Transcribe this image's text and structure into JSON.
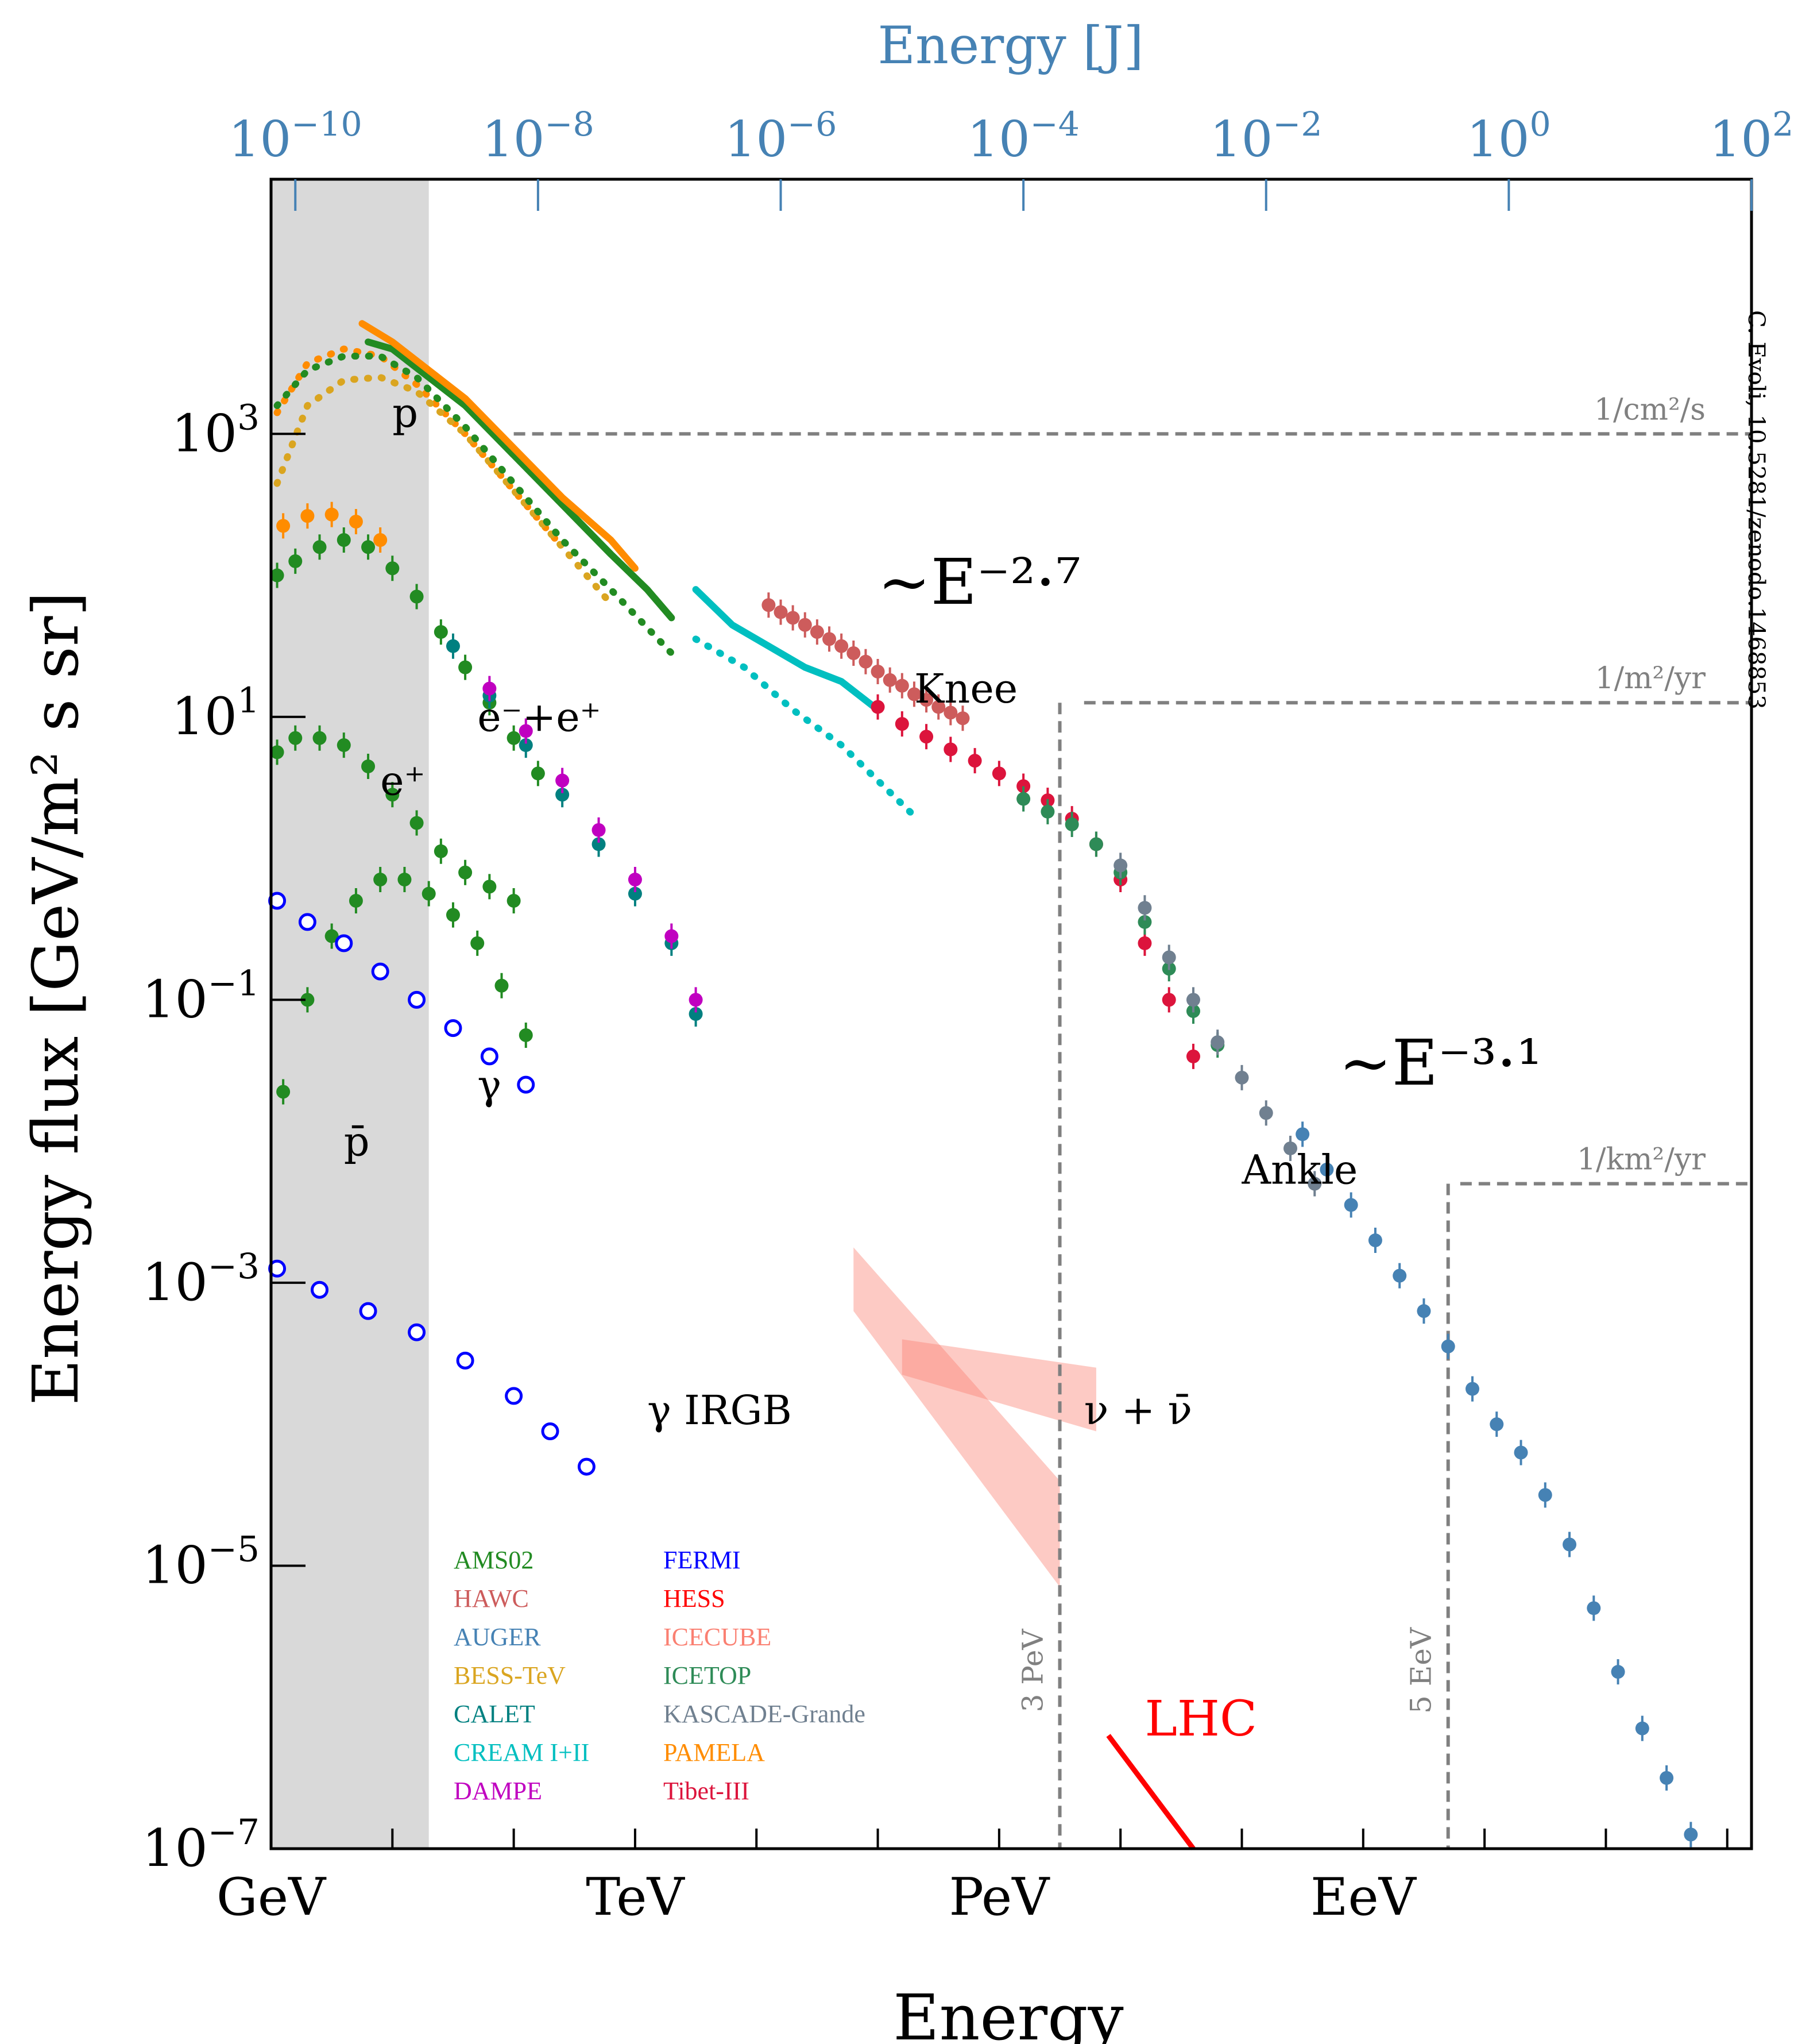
{
  "chart_data": {
    "type": "scatter",
    "title": "",
    "xlabel": "Energy",
    "ylabel": "Energy flux [GeV/m² s sr]",
    "top_xlabel": "Energy [J]",
    "x_scale": "log10 GeV",
    "xlim": [
      0,
      12.2
    ],
    "ylim": [
      -7,
      4.8
    ],
    "x_ticks": [
      {
        "value": 0,
        "label": "GeV"
      },
      {
        "value": 3,
        "label": "TeV"
      },
      {
        "value": 6,
        "label": "PeV"
      },
      {
        "value": 9,
        "label": "EeV"
      }
    ],
    "y_ticks": [
      {
        "value": 3,
        "base": "10",
        "exp": "3"
      },
      {
        "value": 1,
        "base": "10",
        "exp": "1"
      },
      {
        "value": -1,
        "base": "10",
        "exp": "−1"
      },
      {
        "value": -3,
        "base": "10",
        "exp": "−3"
      },
      {
        "value": -5,
        "base": "10",
        "exp": "−5"
      },
      {
        "value": -7,
        "base": "10",
        "exp": "−7"
      }
    ],
    "top_ticks": [
      {
        "value": 0.2,
        "base": "10",
        "exp": "−10"
      },
      {
        "value": 2.2,
        "base": "10",
        "exp": "−8"
      },
      {
        "value": 4.2,
        "base": "10",
        "exp": "−6"
      },
      {
        "value": 6.2,
        "base": "10",
        "exp": "−4"
      },
      {
        "value": 8.2,
        "base": "10",
        "exp": "−2"
      },
      {
        "value": 10.2,
        "base": "10",
        "exp": "0"
      },
      {
        "value": 12.2,
        "base": "10",
        "exp": "2"
      }
    ],
    "shaded_region": [
      0,
      1.3
    ],
    "reference_lines": [
      {
        "y": 3.0,
        "x_start": 2.0,
        "label": "1/cm²/s"
      },
      {
        "y": 1.1,
        "x_start": 6.7,
        "label": "1/m²/yr"
      },
      {
        "y": -2.3,
        "x_start": 9.8,
        "label": "1/km²/yr"
      }
    ],
    "vertical_markers": [
      {
        "x": 6.5,
        "y_top": 1.1,
        "label": "3 PeV"
      },
      {
        "x": 9.7,
        "y_top": -2.3,
        "label": "5 EeV"
      }
    ],
    "annotations": [
      {
        "text": "~E⁻²·⁷",
        "x": 5.0,
        "y": 1.8
      },
      {
        "text": "~E⁻³·¹",
        "x": 8.8,
        "y": -1.6
      },
      {
        "text": "Knee",
        "x": 5.3,
        "y": 1.1
      },
      {
        "text": "Ankle",
        "x": 8.0,
        "y": -2.3
      },
      {
        "text": "ν + ν̄",
        "x": 6.7,
        "y": -4.0
      },
      {
        "text": "γ IRGB",
        "x": 3.1,
        "y": -4.0
      },
      {
        "text": "LHC",
        "x": 7.2,
        "y": -6.2
      },
      {
        "text": "p",
        "x": 1.0,
        "y": 3.05
      },
      {
        "text": "e⁻+e⁺",
        "x": 1.7,
        "y": 0.9
      },
      {
        "text": "e⁺",
        "x": 0.9,
        "y": 0.45
      },
      {
        "text": "γ",
        "x": 1.7,
        "y": -1.7
      },
      {
        "text": "p̄",
        "x": 0.6,
        "y": -2.1
      }
    ],
    "credit": "C. Evoli, 10.5281/zenodo.1468853",
    "legend": [
      {
        "name": "AMS02",
        "color": "#228b22"
      },
      {
        "name": "HAWC",
        "color": "#cd5c5c"
      },
      {
        "name": "AUGER",
        "color": "#4682b4"
      },
      {
        "name": "BESS-TeV",
        "color": "#daa520"
      },
      {
        "name": "CALET",
        "color": "#008080"
      },
      {
        "name": "CREAM I+II",
        "color": "#00bfc0"
      },
      {
        "name": "DAMPE",
        "color": "#c000c0"
      },
      {
        "name": "FERMI",
        "color": "#0000ff"
      },
      {
        "name": "HESS",
        "color": "#ff0000"
      },
      {
        "name": "ICECUBE",
        "color": "#fa8072"
      },
      {
        "name": "ICETOP",
        "color": "#2e8b57"
      },
      {
        "name": "KASCADE-Grande",
        "color": "#708090"
      },
      {
        "name": "PAMELA",
        "color": "#ff8c00"
      },
      {
        "name": "Tibet-III",
        "color": "#dc143c"
      }
    ],
    "series": [
      {
        "name": "p AMS02 (solid)",
        "color": "#228b22",
        "style": "line",
        "x": [
          0.8,
          1.0,
          1.3,
          1.6,
          2.0,
          2.4,
          2.8,
          3.1,
          3.3
        ],
        "y": [
          3.65,
          3.6,
          3.4,
          3.2,
          2.85,
          2.5,
          2.15,
          1.9,
          1.7
        ]
      },
      {
        "name": "p PAMELA (solid)",
        "color": "#ff8c00",
        "style": "line",
        "x": [
          0.75,
          1.0,
          1.3,
          1.6,
          2.0,
          2.4,
          2.8,
          3.0
        ],
        "y": [
          3.78,
          3.65,
          3.45,
          3.25,
          2.9,
          2.55,
          2.25,
          2.05
        ]
      },
      {
        "name": "p PAMELA (dotted)",
        "color": "#ff8c00",
        "style": "dotted",
        "x": [
          0.05,
          0.3,
          0.6,
          0.9,
          1.2,
          1.6,
          2.0,
          2.4
        ],
        "y": [
          3.15,
          3.5,
          3.6,
          3.55,
          3.35,
          3.0,
          2.6,
          2.2
        ]
      },
      {
        "name": "p BESS (dotted)",
        "color": "#daa520",
        "style": "dotted",
        "x": [
          0.05,
          0.3,
          0.6,
          0.9,
          1.2,
          1.6,
          2.0,
          2.4,
          2.8
        ],
        "y": [
          2.65,
          3.2,
          3.38,
          3.4,
          3.3,
          3.0,
          2.6,
          2.2,
          1.8
        ]
      },
      {
        "name": "p AMS02 (dotted)",
        "color": "#228b22",
        "style": "dotted",
        "x": [
          0.05,
          0.3,
          0.6,
          0.9,
          1.2,
          1.6,
          2.0,
          2.4,
          2.8,
          3.3
        ],
        "y": [
          3.2,
          3.45,
          3.55,
          3.55,
          3.4,
          3.05,
          2.65,
          2.25,
          1.9,
          1.45
        ]
      },
      {
        "name": "CREAM (solid)",
        "color": "#00bfc0",
        "style": "line",
        "x": [
          3.5,
          3.8,
          4.1,
          4.4,
          4.7,
          5.0
        ],
        "y": [
          1.9,
          1.65,
          1.5,
          1.35,
          1.25,
          1.05
        ]
      },
      {
        "name": "CREAM (dotted)",
        "color": "#00bfc0",
        "style": "dotted",
        "x": [
          3.5,
          3.9,
          4.3,
          4.7,
          5.0,
          5.3
        ],
        "y": [
          1.55,
          1.35,
          1.05,
          0.8,
          0.55,
          0.3
        ]
      },
      {
        "name": "HAWC",
        "color": "#cd5c5c",
        "style": "points",
        "x": [
          4.1,
          4.2,
          4.3,
          4.4,
          4.5,
          4.6,
          4.7,
          4.8,
          4.9,
          5.0,
          5.1,
          5.2,
          5.3,
          5.4,
          5.5,
          5.6,
          5.7
        ],
        "y": [
          1.79,
          1.74,
          1.7,
          1.65,
          1.6,
          1.55,
          1.5,
          1.45,
          1.39,
          1.32,
          1.26,
          1.22,
          1.16,
          1.12,
          1.07,
          1.03,
          0.99
        ]
      },
      {
        "name": "Tibet-III",
        "color": "#dc143c",
        "style": "points",
        "x": [
          5.0,
          5.2,
          5.4,
          5.6,
          5.8,
          6.0,
          6.2,
          6.4,
          6.6,
          6.8,
          7.0,
          7.2,
          7.4,
          7.6
        ],
        "y": [
          1.07,
          0.95,
          0.86,
          0.77,
          0.69,
          0.6,
          0.51,
          0.41,
          0.28,
          0.1,
          -0.15,
          -0.6,
          -1.0,
          -1.4
        ]
      },
      {
        "name": "ICETOP",
        "color": "#2e8b57",
        "style": "points",
        "x": [
          6.2,
          6.4,
          6.6,
          6.8,
          7.0,
          7.2,
          7.4,
          7.6,
          7.8
        ],
        "y": [
          0.42,
          0.33,
          0.24,
          0.1,
          -0.1,
          -0.45,
          -0.78,
          -1.08,
          -1.32
        ]
      },
      {
        "name": "KASCADE-Grande",
        "color": "#708090",
        "style": "points",
        "x": [
          7.0,
          7.2,
          7.4,
          7.6,
          7.8,
          8.0,
          8.2,
          8.4,
          8.6
        ],
        "y": [
          -0.05,
          -0.35,
          -0.7,
          -1.0,
          -1.3,
          -1.55,
          -1.8,
          -2.05,
          -2.3
        ]
      },
      {
        "name": "AUGER",
        "color": "#4682b4",
        "style": "points",
        "x": [
          8.5,
          8.7,
          8.9,
          9.1,
          9.3,
          9.5,
          9.7,
          9.9,
          10.1,
          10.3,
          10.5,
          10.7,
          10.9,
          11.1,
          11.3,
          11.5,
          11.7
        ],
        "y": [
          -1.95,
          -2.2,
          -2.45,
          -2.7,
          -2.95,
          -3.2,
          -3.45,
          -3.75,
          -4.0,
          -4.2,
          -4.5,
          -4.85,
          -5.3,
          -5.75,
          -6.15,
          -6.5,
          -6.9
        ]
      },
      {
        "name": "e⁻+e⁺ AMS02",
        "color": "#228b22",
        "style": "points",
        "x": [
          0.05,
          0.2,
          0.4,
          0.6,
          0.8,
          1.0,
          1.2,
          1.4,
          1.6,
          1.8,
          2.0,
          2.2
        ],
        "y": [
          2.0,
          2.1,
          2.2,
          2.25,
          2.2,
          2.05,
          1.85,
          1.6,
          1.35,
          1.1,
          0.85,
          0.6
        ]
      },
      {
        "name": "e⁻+e⁺ PAMELA",
        "color": "#ff8c00",
        "style": "points",
        "x": [
          0.1,
          0.3,
          0.5,
          0.7,
          0.9
        ],
        "y": [
          2.35,
          2.42,
          2.43,
          2.38,
          2.25
        ]
      },
      {
        "name": "e⁻+e⁺ CALET",
        "color": "#008080",
        "style": "points",
        "x": [
          1.5,
          1.8,
          2.1,
          2.4,
          2.7,
          3.0,
          3.3,
          3.5
        ],
        "y": [
          1.5,
          1.15,
          0.8,
          0.45,
          0.1,
          -0.25,
          -0.6,
          -1.1
        ]
      },
      {
        "name": "e⁻+e⁺ DAMPE",
        "color": "#c000c0",
        "style": "points",
        "x": [
          1.8,
          2.1,
          2.4,
          2.7,
          3.0,
          3.3,
          3.5
        ],
        "y": [
          1.2,
          0.9,
          0.55,
          0.2,
          -0.15,
          -0.55,
          -1.0
        ]
      },
      {
        "name": "e⁺ AMS02",
        "color": "#228b22",
        "style": "points",
        "x": [
          0.05,
          0.2,
          0.4,
          0.6,
          0.8,
          1.0,
          1.2,
          1.4,
          1.6,
          1.8,
          2.0
        ],
        "y": [
          0.75,
          0.85,
          0.85,
          0.8,
          0.65,
          0.45,
          0.25,
          0.05,
          -0.1,
          -0.2,
          -0.3
        ]
      },
      {
        "name": "p̄ AMS02",
        "color": "#228b22",
        "style": "points",
        "x": [
          0.1,
          0.3,
          0.5,
          0.7,
          0.9,
          1.1,
          1.3,
          1.5,
          1.7,
          1.9,
          2.1
        ],
        "y": [
          -1.65,
          -1.0,
          -0.55,
          -0.3,
          -0.15,
          -0.15,
          -0.25,
          -0.4,
          -0.6,
          -0.9,
          -1.25
        ]
      },
      {
        "name": "γ FERMI",
        "color": "#0000ff",
        "style": "points_open",
        "x": [
          0.05,
          0.3,
          0.6,
          0.9,
          1.2,
          1.5,
          1.8,
          2.1
        ],
        "y": [
          -0.3,
          -0.45,
          -0.6,
          -0.8,
          -1.0,
          -1.2,
          -1.4,
          -1.6
        ]
      },
      {
        "name": "γ IRGB FERMI",
        "color": "#0000ff",
        "style": "points_open",
        "x": [
          0.05,
          0.4,
          0.8,
          1.2,
          1.6,
          2.0,
          2.3,
          2.6
        ],
        "y": [
          -2.9,
          -3.05,
          -3.2,
          -3.35,
          -3.55,
          -3.8,
          -4.05,
          -4.3
        ]
      }
    ],
    "bands": [
      {
        "name": "ICECUBE band 1",
        "color": "#fa8072",
        "x": [
          4.8,
          6.5
        ],
        "y_upper": [
          -2.75,
          -4.4
        ],
        "y_lower": [
          -3.2,
          -5.15
        ]
      },
      {
        "name": "ICECUBE band 2",
        "color": "#fa8072",
        "x": [
          5.2,
          6.8
        ],
        "y_upper": [
          -3.4,
          -3.6
        ],
        "y_lower": [
          -3.65,
          -4.05
        ]
      }
    ],
    "lhc_line": {
      "color": "#ff0000",
      "x": [
        6.9,
        7.6
      ],
      "y": [
        -6.2,
        -7.0
      ]
    }
  }
}
